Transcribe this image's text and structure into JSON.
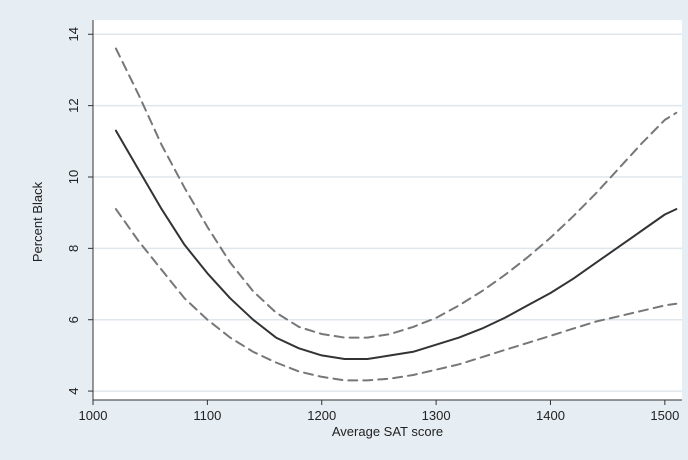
{
  "chart_data": {
    "type": "line",
    "title": "",
    "xlabel": "Average SAT score",
    "ylabel": "Percent Black",
    "xlim": [
      1000,
      1515
    ],
    "ylim": [
      3.75,
      14.4
    ],
    "xticks": [
      1000,
      1100,
      1200,
      1300,
      1400,
      1500
    ],
    "yticks": [
      4,
      6,
      8,
      10,
      12,
      14
    ],
    "grid": "horizontal",
    "legend": "none",
    "colors": {
      "outer_background": "#e6edf3",
      "plot_background": "#ffffff",
      "fit_line": "#333333",
      "ci_line": "#777777",
      "grid": "#dfe6ec"
    },
    "series": [
      {
        "style": "solid",
        "x": [
          1020,
          1040,
          1060,
          1080,
          1100,
          1120,
          1140,
          1160,
          1180,
          1200,
          1220,
          1240,
          1260,
          1280,
          1300,
          1320,
          1340,
          1360,
          1380,
          1400,
          1420,
          1440,
          1460,
          1480,
          1500,
          1510
        ],
        "y": [
          11.3,
          10.2,
          9.1,
          8.1,
          7.3,
          6.6,
          6.0,
          5.5,
          5.2,
          5.0,
          4.9,
          4.9,
          5.0,
          5.1,
          5.3,
          5.5,
          5.75,
          6.05,
          6.4,
          6.75,
          7.15,
          7.6,
          8.05,
          8.5,
          8.95,
          9.1
        ]
      },
      {
        "style": "dashed",
        "x": [
          1020,
          1040,
          1060,
          1080,
          1100,
          1120,
          1140,
          1160,
          1180,
          1200,
          1220,
          1240,
          1260,
          1280,
          1300,
          1320,
          1340,
          1360,
          1380,
          1400,
          1420,
          1440,
          1460,
          1480,
          1500,
          1510
        ],
        "y": [
          13.6,
          12.3,
          10.9,
          9.7,
          8.6,
          7.6,
          6.8,
          6.2,
          5.8,
          5.6,
          5.5,
          5.5,
          5.6,
          5.8,
          6.05,
          6.4,
          6.8,
          7.25,
          7.75,
          8.3,
          8.9,
          9.55,
          10.25,
          10.95,
          11.6,
          11.8
        ]
      },
      {
        "style": "dashed",
        "x": [
          1020,
          1040,
          1060,
          1080,
          1100,
          1120,
          1140,
          1160,
          1180,
          1200,
          1220,
          1240,
          1260,
          1280,
          1300,
          1320,
          1340,
          1360,
          1380,
          1400,
          1420,
          1440,
          1460,
          1480,
          1500,
          1510
        ],
        "y": [
          9.1,
          8.2,
          7.4,
          6.6,
          6.0,
          5.5,
          5.1,
          4.8,
          4.55,
          4.4,
          4.3,
          4.3,
          4.35,
          4.45,
          4.6,
          4.75,
          4.95,
          5.15,
          5.35,
          5.55,
          5.75,
          5.95,
          6.1,
          6.25,
          6.4,
          6.45
        ]
      }
    ]
  }
}
